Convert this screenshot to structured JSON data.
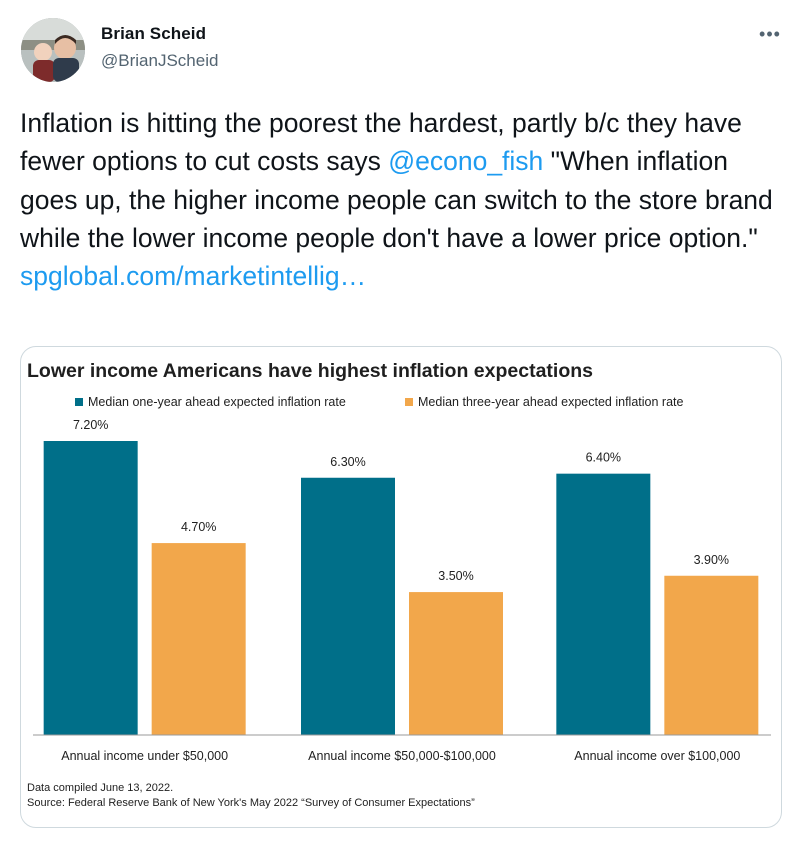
{
  "user": {
    "name": "Brian Scheid",
    "handle": "@BrianJScheid"
  },
  "more_label": "•••",
  "tweet": {
    "text_1": "Inflation is hitting the poorest the hardest, partly b/c they have fewer options to cut costs says ",
    "mention": "@econo_fish",
    "text_2": " \"When inflation goes up, the higher income people can switch to the store brand while the lower income people don't have a lower price option.\" ",
    "link": "spglobal.com/marketintellig…"
  },
  "chart_data": {
    "type": "bar",
    "title": "Lower income Americans have highest inflation expectations",
    "categories": [
      "Annual income under $50,000",
      "Annual income $50,000-$100,000",
      "Annual income over $100,000"
    ],
    "series": [
      {
        "name": "Median one-year ahead expected inflation rate",
        "values": [
          7.2,
          6.3,
          6.4
        ],
        "labels": [
          "7.20%",
          "6.30%",
          "6.40%"
        ],
        "color": "#006f89"
      },
      {
        "name": "Median three-year ahead expected inflation rate",
        "values": [
          4.7,
          3.5,
          3.9
        ],
        "labels": [
          "4.70%",
          "3.50%",
          "3.90%"
        ],
        "color": "#f2a74b"
      }
    ],
    "ylim": [
      0,
      8
    ],
    "legend": "top",
    "grid": false,
    "notes": [
      "Data compiled June 13, 2022.",
      "Source: Federal Reserve Bank of New York's May 2022 “Survey of Consumer Expectations”"
    ]
  }
}
